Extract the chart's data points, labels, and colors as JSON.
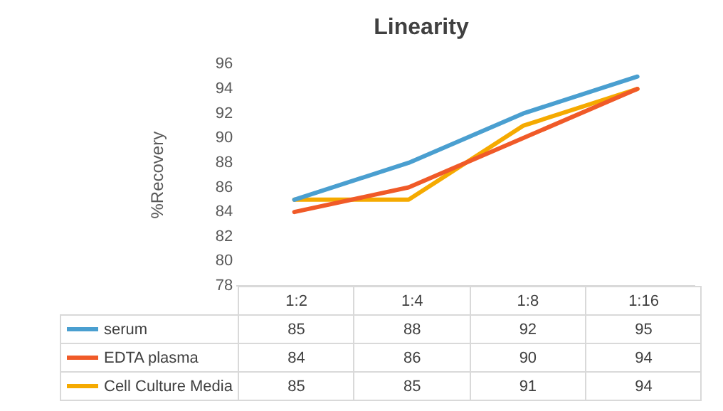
{
  "chart_data": {
    "type": "line",
    "title": "Linearity",
    "ylabel": "%Recovery",
    "categories": [
      "1:2",
      "1:4",
      "1:8",
      "1:16"
    ],
    "series": [
      {
        "name": "serum",
        "color": "#4a9fd0",
        "values": [
          85,
          88,
          92,
          95
        ]
      },
      {
        "name": "EDTA plasma",
        "color": "#f05a28",
        "values": [
          84,
          86,
          90,
          94
        ]
      },
      {
        "name": "Cell Culture Media",
        "color": "#f5aa00",
        "values": [
          85,
          85,
          91,
          94
        ]
      }
    ],
    "ylim": [
      78,
      96
    ],
    "yticks": [
      78,
      80,
      82,
      84,
      86,
      88,
      90,
      92,
      94,
      96
    ],
    "grid": false,
    "legend": "bottom",
    "data_labels": true,
    "marker": "none",
    "line_style": "solid"
  }
}
